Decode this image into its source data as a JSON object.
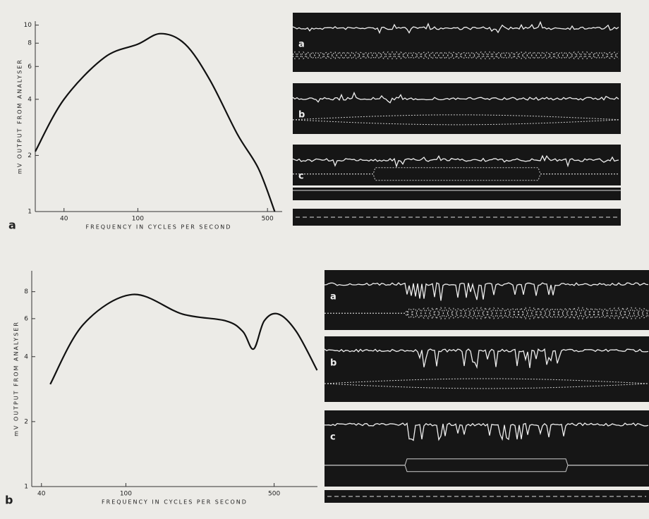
{
  "chart_data": [
    {
      "type": "line",
      "panel_label": "a",
      "x_label": "FREQUENCY IN CYCLES PER SECOND",
      "y_label": "mV OUTPUT FROM ANALYSER",
      "x": [
        28,
        40,
        66,
        100,
        133,
        180,
        244,
        344,
        447,
        547
      ],
      "series": [
        {
          "name": null,
          "color": "#111111",
          "values": [
            2.1,
            4,
            6.7,
            7.9,
            9,
            7.9,
            5.1,
            2.6,
            1.7,
            1
          ]
        }
      ],
      "x_log": true,
      "y_log": true,
      "xlim": [
        28,
        600
      ],
      "ylim": [
        1,
        10.5
      ],
      "xticks": [
        40,
        100,
        500
      ],
      "yticks": [
        1,
        2,
        4,
        6,
        8,
        10
      ]
    },
    {
      "type": "line",
      "panel_label": "b",
      "x_label": "FREQUENCY IN CYCLES PER SECOND",
      "y_label": "mV OUTPUT FROM ANALYSER",
      "x": [
        44,
        63,
        107,
        185,
        296,
        356,
        400,
        449,
        524,
        636,
        797
      ],
      "series": [
        {
          "name": null,
          "color": "#111111",
          "values": [
            2.98,
            5.64,
            7.76,
            6.3,
            5.86,
            5.23,
            4.34,
            5.86,
            6.3,
            5.23,
            3.46
          ]
        }
      ],
      "x_log": true,
      "y_log": true,
      "xlim": [
        36,
        800
      ],
      "ylim": [
        1,
        10
      ],
      "xticks": [
        40,
        100,
        500
      ],
      "yticks": [
        1,
        2,
        4,
        6,
        8
      ]
    }
  ],
  "trace_panels": [
    {
      "labels": [
        "a",
        "b",
        "c"
      ]
    },
    {
      "labels": [
        "a",
        "b",
        "c"
      ]
    }
  ]
}
